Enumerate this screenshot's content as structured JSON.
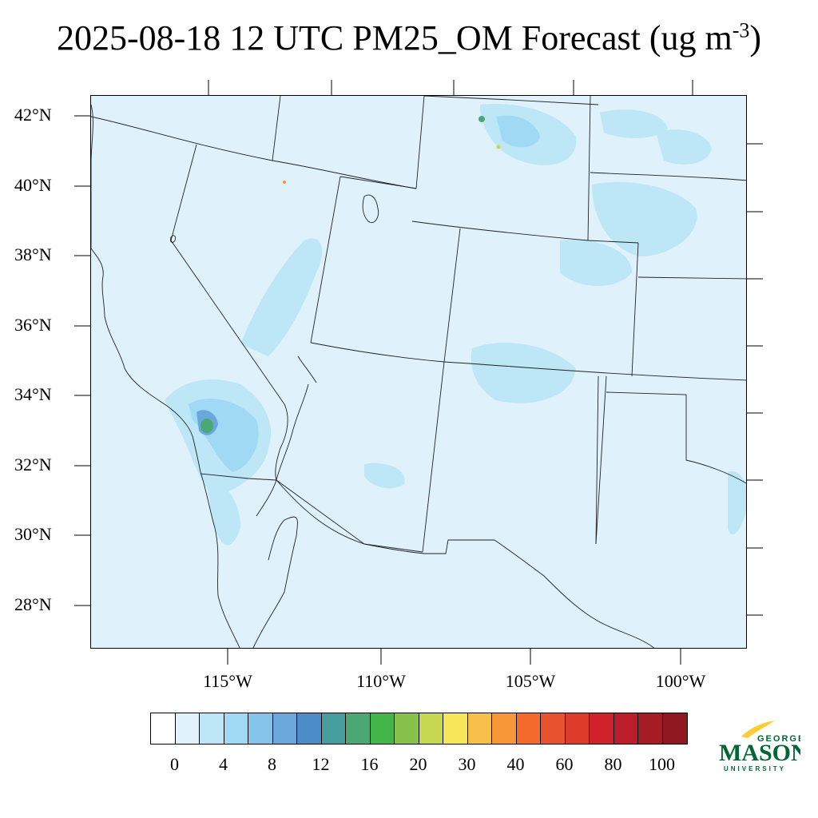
{
  "title": {
    "text": "2025-08-18 12 UTC PM25_OM Forecast (ug m",
    "superscript": "-3",
    "suffix": ")"
  },
  "map": {
    "lat_labels": [
      "42°N",
      "40°N",
      "38°N",
      "36°N",
      "34°N",
      "32°N",
      "30°N",
      "28°N"
    ],
    "lon_labels": [
      "115°W",
      "110°W",
      "105°W",
      "100°W"
    ],
    "background_color": "#dff1fb"
  },
  "colorbar": {
    "colors": [
      "#ffffff",
      "#e0f3fb",
      "#bde6f7",
      "#9fd9f4",
      "#85c3ea",
      "#6aa8dc",
      "#4b8cc9",
      "#479e9e",
      "#4aa874",
      "#44b549",
      "#87c34a",
      "#c6d84f",
      "#f6e65a",
      "#f7c04a",
      "#f69838",
      "#f36a2c",
      "#e9522f",
      "#df3b2a",
      "#d1222c",
      "#bb1d2b",
      "#a61c25",
      "#8e1720"
    ],
    "tick_labels": [
      "0",
      "4",
      "8",
      "12",
      "16",
      "20",
      "30",
      "40",
      "60",
      "80",
      "100"
    ]
  },
  "logo": {
    "line1": "GEORGE",
    "line2": "MASON",
    "line3": "UNIVERSITY",
    "primary_color": "#006633",
    "accent_color": "#ffcc33"
  }
}
